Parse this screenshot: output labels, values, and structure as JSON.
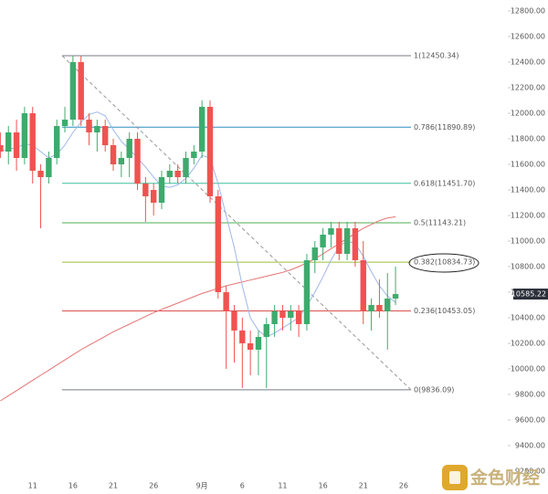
{
  "chart_data": {
    "type": "candlestick",
    "categories": [
      null,
      null,
      null,
      null,
      "11",
      null,
      null,
      null,
      null,
      "16",
      null,
      null,
      null,
      null,
      "21",
      null,
      null,
      null,
      null,
      "26",
      null,
      null,
      null,
      null,
      null,
      "9月",
      null,
      null,
      null,
      null,
      "6",
      null,
      null,
      null,
      null,
      "11",
      null,
      null,
      null,
      null,
      "16",
      null,
      null,
      null,
      null,
      "21",
      null,
      null,
      null,
      null,
      "26"
    ],
    "open": [
      11750,
      11700,
      11850,
      11650,
      12000,
      11550,
      11500,
      11650,
      11900,
      11950,
      12400,
      11950,
      11850,
      11900,
      11750,
      11600,
      11650,
      11800,
      11450,
      11400,
      11300,
      11500,
      11550,
      11500,
      11650,
      11700,
      12050,
      11350,
      10600,
      10450,
      10300,
      10200,
      10150,
      10250,
      10350,
      10450,
      10400,
      10450,
      10350,
      10850,
      10950,
      11050,
      11100,
      10900,
      11100,
      10850,
      10450,
      10500,
      10450,
      10550,
      null
    ],
    "high": [
      11850,
      11900,
      11950,
      12050,
      12050,
      11600,
      11700,
      11950,
      12050,
      12450,
      12450,
      12000,
      11950,
      11950,
      11800,
      11700,
      11850,
      11850,
      11500,
      11450,
      11550,
      11600,
      11600,
      11700,
      11750,
      12100,
      12100,
      11400,
      10650,
      10500,
      10400,
      10300,
      10300,
      10400,
      10500,
      10500,
      10500,
      10500,
      10900,
      11000,
      11100,
      11150,
      11150,
      11150,
      11150,
      11000,
      10550,
      10700,
      10750,
      10800,
      null
    ],
    "low": [
      11650,
      11600,
      11550,
      11600,
      11450,
      11100,
      11450,
      11600,
      11850,
      11900,
      11900,
      11750,
      11700,
      11700,
      11550,
      11500,
      11500,
      11400,
      11150,
      11200,
      11250,
      11450,
      11450,
      11450,
      11600,
      11650,
      11300,
      10550,
      10000,
      10050,
      9850,
      9950,
      9950,
      9850,
      10250,
      10300,
      10300,
      10250,
      10300,
      10750,
      10850,
      10950,
      10850,
      10850,
      10800,
      10350,
      10300,
      10400,
      10150,
      10500,
      null
    ],
    "close": [
      11700,
      11850,
      11650,
      12000,
      11550,
      11500,
      11650,
      11900,
      11950,
      12400,
      11950,
      11850,
      11900,
      11750,
      11600,
      11650,
      11800,
      11450,
      11350,
      11300,
      11500,
      11550,
      11500,
      11650,
      11700,
      12050,
      11350,
      10600,
      10450,
      10300,
      10200,
      10150,
      10250,
      10350,
      10450,
      10400,
      10450,
      10350,
      10850,
      10950,
      11050,
      11100,
      10900,
      11100,
      10850,
      10450,
      10500,
      10450,
      10550,
      10585.22,
      null
    ],
    "up_color": "#3dab6d",
    "down_color": "#ef5350",
    "series": [
      {
        "color": "#e57373",
        "values": [
          9750,
          9790,
          9830,
          9870,
          9910,
          9950,
          9990,
          10030,
          10070,
          10110,
          10150,
          10185,
          10220,
          10255,
          10290,
          10320,
          10350,
          10380,
          10410,
          10440,
          10465,
          10490,
          10515,
          10540,
          10565,
          10590,
          10610,
          10630,
          10650,
          10665,
          10680,
          10695,
          10710,
          10725,
          10740,
          10755,
          10775,
          10800,
          10830,
          10860,
          10900,
          10940,
          10980,
          11020,
          11060,
          11100,
          11130,
          11160,
          11180,
          11190,
          null
        ]
      },
      {
        "color": "#9fb8e6",
        "values": [
          11700,
          11720,
          11730,
          11760,
          11750,
          11700,
          11650,
          11680,
          11750,
          11850,
          11930,
          11990,
          12010,
          11980,
          11870,
          11780,
          11720,
          11650,
          11580,
          11500,
          11430,
          11420,
          11440,
          11490,
          11570,
          11670,
          11650,
          11450,
          11200,
          10950,
          10650,
          10400,
          10300,
          10250,
          10280,
          10320,
          10360,
          10400,
          10490,
          10600,
          10720,
          10850,
          10960,
          11000,
          10980,
          10880,
          10760,
          10650,
          10570,
          10520,
          null
        ]
      }
    ],
    "fib_levels": [
      {
        "value": 12450.34,
        "label": "1(12450.34)",
        "color": "#787b86"
      },
      {
        "value": 11890.89,
        "label": "0.786(11890.89)",
        "color": "#2a8fbd"
      },
      {
        "value": 11451.7,
        "label": "0.618(11451.70)",
        "color": "#3bbf9a"
      },
      {
        "value": 11143.21,
        "label": "0.5(11143.21)",
        "color": "#4caf50"
      },
      {
        "value": 10834.73,
        "label": "0.382(10834.73)",
        "color": "#9cbf3c"
      },
      {
        "value": 10453.05,
        "label": "0.236(10453.05)",
        "color": "#d9534f"
      },
      {
        "value": 9836.09,
        "label": "0(9836.09)",
        "color": "#787b86"
      }
    ],
    "last_price": {
      "value": 10585.22,
      "label": "10585.22"
    },
    "ylim": [
      9171,
      12886
    ],
    "yticks": [
      {
        "value": 9200,
        "label": "9200.00"
      },
      {
        "value": 9400,
        "label": "9400.00"
      },
      {
        "value": 9600,
        "label": "9600.00"
      },
      {
        "value": 9800,
        "label": "9800.00"
      },
      {
        "value": 10000,
        "label": "10000.00"
      },
      {
        "value": 10200,
        "label": "10200.00"
      },
      {
        "value": 10400,
        "label": "10400.00"
      },
      {
        "value": 10600,
        "label": "10600.00"
      },
      {
        "value": 10800,
        "label": "10800.00"
      },
      {
        "value": 11000,
        "label": "11000.00"
      },
      {
        "value": 11200,
        "label": "11200.00"
      },
      {
        "value": 11400,
        "label": "11400.00"
      },
      {
        "value": 11600,
        "label": "11600.00"
      },
      {
        "value": 11800,
        "label": "11800.00"
      },
      {
        "value": 12000,
        "label": "12000.00"
      },
      {
        "value": 12200,
        "label": "12200.00"
      },
      {
        "value": 12400,
        "label": "12400.00"
      },
      {
        "value": 12600,
        "label": "12600.00"
      },
      {
        "value": 12800,
        "label": "12800.00"
      }
    ],
    "watermark": "金色财经"
  }
}
